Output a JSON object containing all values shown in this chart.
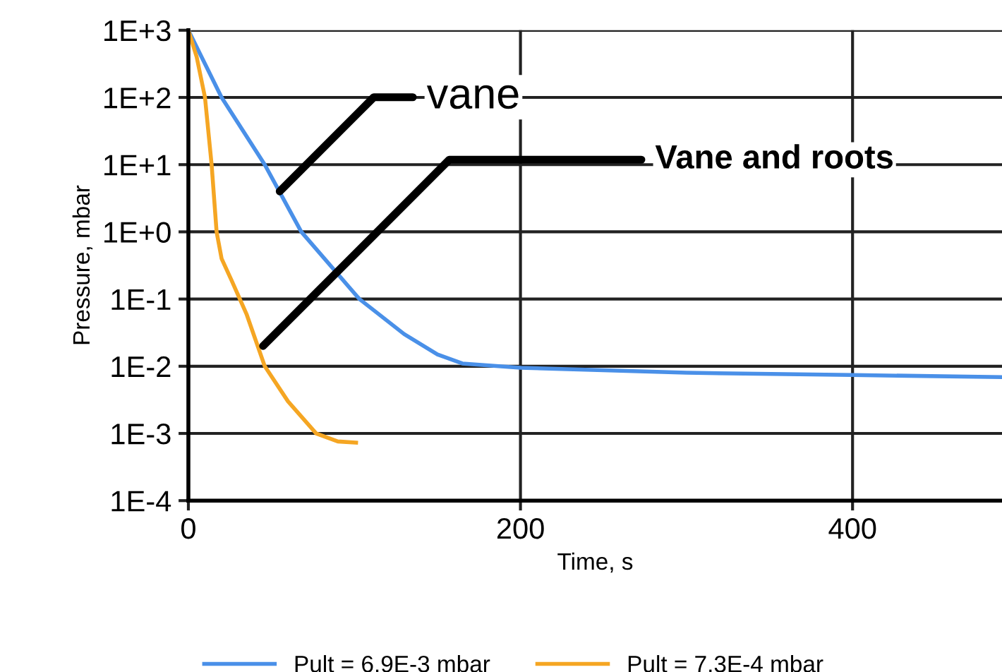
{
  "chart_data": {
    "type": "line",
    "xlabel": "Time, s",
    "ylabel": "Pressure, mbar",
    "log": "y",
    "grid": true,
    "legend": "bottom",
    "marker": "none",
    "line_style": "solid",
    "xlim": [
      0,
      490
    ],
    "xticks": [
      0,
      200,
      400
    ],
    "ylim": [
      0.0001,
      1000
    ],
    "yticks": [
      {
        "value": 1000,
        "label": "1E+3"
      },
      {
        "value": 100,
        "label": "1E+2"
      },
      {
        "value": 10,
        "label": "1E+1"
      },
      {
        "value": 1,
        "label": "1E+0"
      },
      {
        "value": 0.1,
        "label": "1E-1"
      },
      {
        "value": 0.01,
        "label": "1E-2"
      },
      {
        "value": 0.001,
        "label": "1E-3"
      },
      {
        "value": 0.0001,
        "label": "1E-4"
      }
    ],
    "series": [
      {
        "name": "Pult = 6.9E-3 mbar",
        "color": "#4a90e8",
        "x": [
          0,
          20,
          46,
          68,
          103,
          130,
          150,
          165,
          200,
          300,
          400,
          490
        ],
        "values": [
          1000,
          100,
          10,
          1,
          0.1,
          0.03,
          0.015,
          0.011,
          0.0095,
          0.008,
          0.0074,
          0.0069
        ]
      },
      {
        "name": "Pult = 7.3E-4 mbar",
        "color": "#f5a623",
        "x": [
          0,
          5,
          10,
          14,
          17,
          20,
          26,
          35,
          46,
          60,
          77,
          90,
          101
        ],
        "values": [
          1000,
          400,
          100,
          10,
          1,
          0.4,
          0.19,
          0.06,
          0.01,
          0.003,
          0.001,
          0.00076,
          0.00073
        ]
      }
    ],
    "annotations": [
      {
        "text": "vane",
        "x": 55,
        "y": 4
      },
      {
        "text": "Vane and roots",
        "x": 45,
        "y": 0.02
      }
    ]
  }
}
